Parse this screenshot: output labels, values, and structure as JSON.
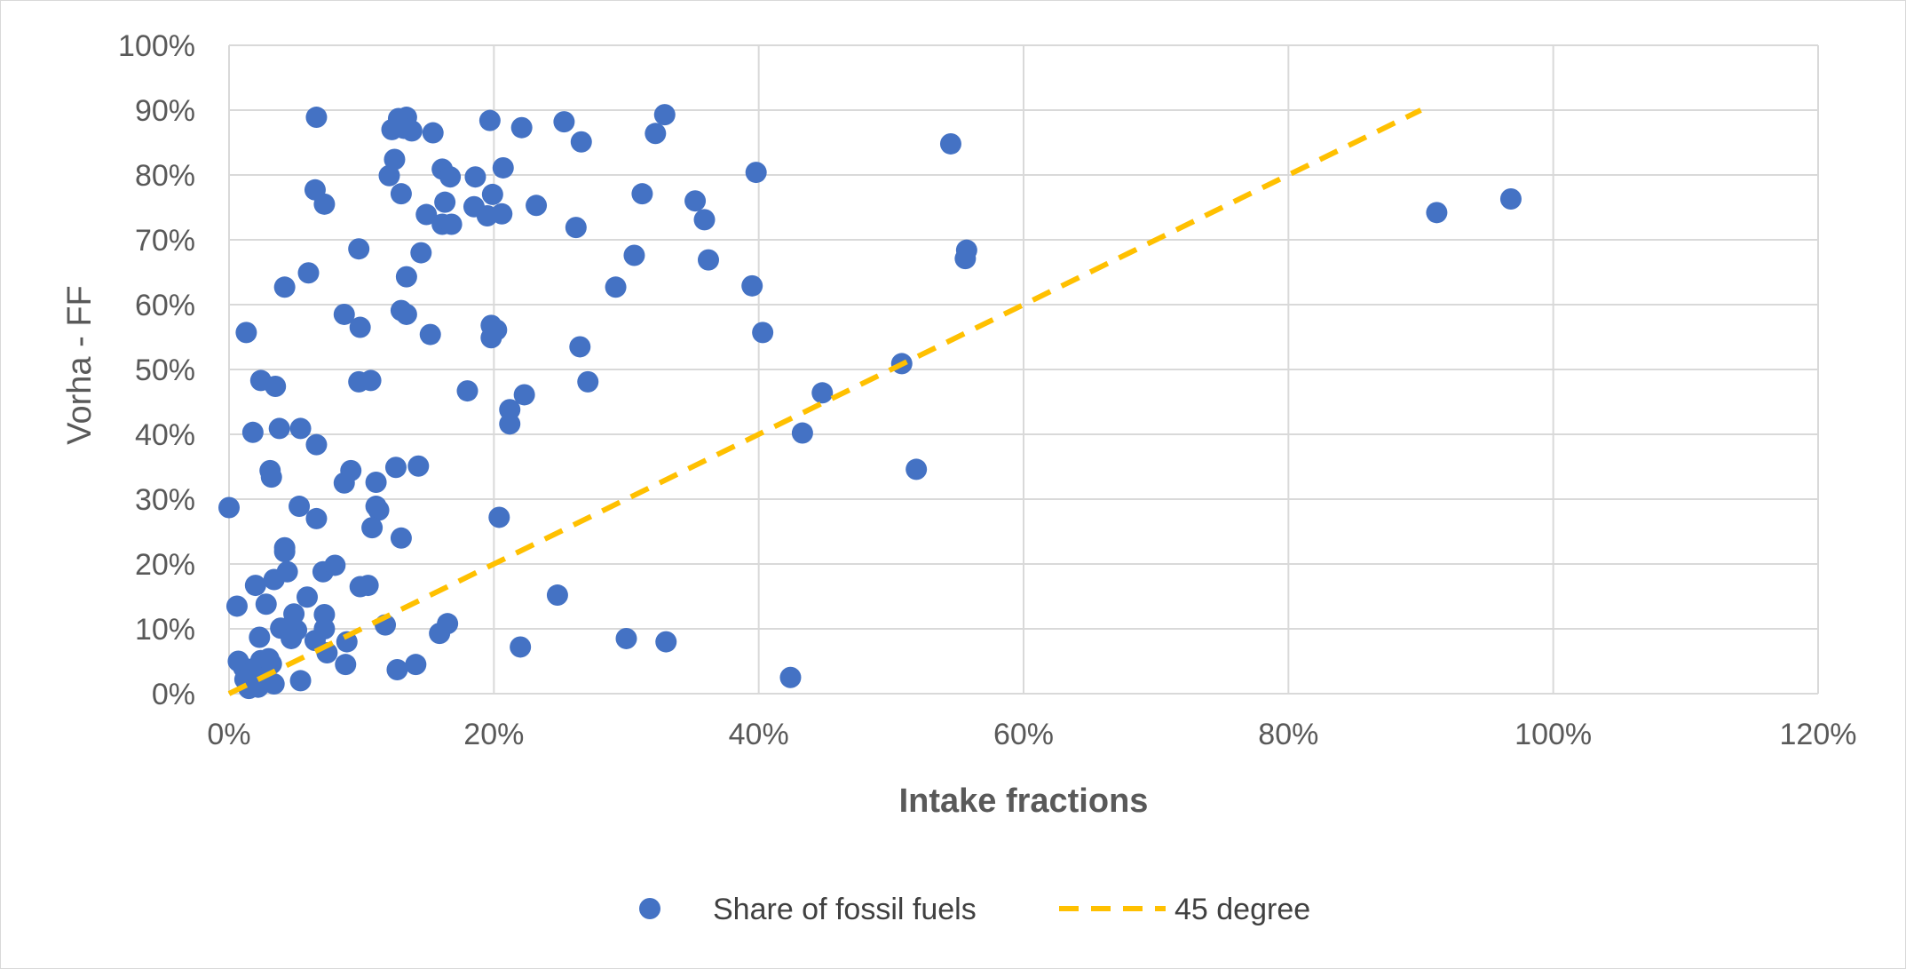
{
  "chart_data": {
    "type": "scatter",
    "title": "",
    "xlabel": "Intake fractions",
    "ylabel": "Vorha - FF",
    "xlim": [
      0,
      1.2
    ],
    "ylim": [
      0,
      1.0
    ],
    "x_ticks": [
      0,
      0.2,
      0.4,
      0.6,
      0.8,
      1.0,
      1.2
    ],
    "y_ticks": [
      0,
      0.1,
      0.2,
      0.3,
      0.4,
      0.5,
      0.6,
      0.7,
      0.8,
      0.9,
      1.0
    ],
    "x_tick_labels": [
      "0%",
      "20%",
      "40%",
      "60%",
      "80%",
      "100%",
      "120%"
    ],
    "y_tick_labels": [
      "0%",
      "10%",
      "20%",
      "30%",
      "40%",
      "50%",
      "60%",
      "70%",
      "80%",
      "90%",
      "100%"
    ],
    "grid": true,
    "legend_position": "bottom",
    "series": [
      {
        "name": "Share of fossil fuels",
        "kind": "scatter",
        "color": "#4472C4",
        "points": [
          [
            0.066,
            0.889
          ],
          [
            0.128,
            0.887
          ],
          [
            0.134,
            0.889
          ],
          [
            0.123,
            0.87
          ],
          [
            0.132,
            0.872
          ],
          [
            0.138,
            0.868
          ],
          [
            0.154,
            0.865
          ],
          [
            0.197,
            0.884
          ],
          [
            0.221,
            0.873
          ],
          [
            0.253,
            0.882
          ],
          [
            0.329,
            0.893
          ],
          [
            0.322,
            0.864
          ],
          [
            0.266,
            0.851
          ],
          [
            0.125,
            0.824
          ],
          [
            0.121,
            0.799
          ],
          [
            0.161,
            0.809
          ],
          [
            0.167,
            0.797
          ],
          [
            0.186,
            0.797
          ],
          [
            0.207,
            0.811
          ],
          [
            0.398,
            0.804
          ],
          [
            0.545,
            0.848
          ],
          [
            0.065,
            0.777
          ],
          [
            0.072,
            0.755
          ],
          [
            0.13,
            0.771
          ],
          [
            0.163,
            0.758
          ],
          [
            0.185,
            0.751
          ],
          [
            0.199,
            0.77
          ],
          [
            0.232,
            0.753
          ],
          [
            0.312,
            0.771
          ],
          [
            0.352,
            0.76
          ],
          [
            0.149,
            0.739
          ],
          [
            0.161,
            0.724
          ],
          [
            0.168,
            0.724
          ],
          [
            0.195,
            0.737
          ],
          [
            0.206,
            0.74
          ],
          [
            0.262,
            0.719
          ],
          [
            0.359,
            0.731
          ],
          [
            0.912,
            0.742
          ],
          [
            0.968,
            0.763
          ],
          [
            0.098,
            0.686
          ],
          [
            0.145,
            0.68
          ],
          [
            0.306,
            0.676
          ],
          [
            0.362,
            0.669
          ],
          [
            0.557,
            0.684
          ],
          [
            0.556,
            0.671
          ],
          [
            0.06,
            0.649
          ],
          [
            0.042,
            0.627
          ],
          [
            0.134,
            0.643
          ],
          [
            0.292,
            0.627
          ],
          [
            0.395,
            0.629
          ],
          [
            0.087,
            0.585
          ],
          [
            0.13,
            0.591
          ],
          [
            0.134,
            0.585
          ],
          [
            0.099,
            0.565
          ],
          [
            0.013,
            0.557
          ],
          [
            0.152,
            0.554
          ],
          [
            0.198,
            0.568
          ],
          [
            0.202,
            0.561
          ],
          [
            0.198,
            0.549
          ],
          [
            0.403,
            0.557
          ],
          [
            0.265,
            0.535
          ],
          [
            0.024,
            0.483
          ],
          [
            0.035,
            0.474
          ],
          [
            0.098,
            0.481
          ],
          [
            0.107,
            0.483
          ],
          [
            0.271,
            0.481
          ],
          [
            0.508,
            0.509
          ],
          [
            0.18,
            0.467
          ],
          [
            0.223,
            0.461
          ],
          [
            0.212,
            0.438
          ],
          [
            0.212,
            0.416
          ],
          [
            0.448,
            0.464
          ],
          [
            0.018,
            0.403
          ],
          [
            0.038,
            0.409
          ],
          [
            0.054,
            0.409
          ],
          [
            0.066,
            0.384
          ],
          [
            0.433,
            0.402
          ],
          [
            0.031,
            0.344
          ],
          [
            0.032,
            0.334
          ],
          [
            0.092,
            0.344
          ],
          [
            0.087,
            0.325
          ],
          [
            0.126,
            0.349
          ],
          [
            0.143,
            0.351
          ],
          [
            0.111,
            0.326
          ],
          [
            0.519,
            0.346
          ],
          [
            0.0,
            0.287
          ],
          [
            0.053,
            0.289
          ],
          [
            0.066,
            0.27
          ],
          [
            0.111,
            0.289
          ],
          [
            0.113,
            0.283
          ],
          [
            0.108,
            0.256
          ],
          [
            0.13,
            0.24
          ],
          [
            0.204,
            0.272
          ],
          [
            0.042,
            0.225
          ],
          [
            0.042,
            0.219
          ],
          [
            0.02,
            0.167
          ],
          [
            0.034,
            0.176
          ],
          [
            0.044,
            0.188
          ],
          [
            0.071,
            0.188
          ],
          [
            0.08,
            0.198
          ],
          [
            0.099,
            0.165
          ],
          [
            0.105,
            0.167
          ],
          [
            0.006,
            0.135
          ],
          [
            0.028,
            0.138
          ],
          [
            0.059,
            0.149
          ],
          [
            0.248,
            0.152
          ],
          [
            0.049,
            0.123
          ],
          [
            0.072,
            0.122
          ],
          [
            0.118,
            0.106
          ],
          [
            0.165,
            0.108
          ],
          [
            0.039,
            0.101
          ],
          [
            0.046,
            0.094
          ],
          [
            0.051,
            0.098
          ],
          [
            0.072,
            0.1
          ],
          [
            0.159,
            0.093
          ],
          [
            0.023,
            0.087
          ],
          [
            0.047,
            0.085
          ],
          [
            0.065,
            0.082
          ],
          [
            0.089,
            0.08
          ],
          [
            0.3,
            0.085
          ],
          [
            0.33,
            0.08
          ],
          [
            0.007,
            0.05
          ],
          [
            0.011,
            0.04
          ],
          [
            0.016,
            0.032
          ],
          [
            0.02,
            0.04
          ],
          [
            0.024,
            0.051
          ],
          [
            0.03,
            0.054
          ],
          [
            0.032,
            0.046
          ],
          [
            0.019,
            0.015
          ],
          [
            0.034,
            0.015
          ],
          [
            0.054,
            0.02
          ],
          [
            0.074,
            0.063
          ],
          [
            0.088,
            0.045
          ],
          [
            0.127,
            0.037
          ],
          [
            0.141,
            0.045
          ],
          [
            0.22,
            0.072
          ],
          [
            0.424,
            0.025
          ],
          [
            0.012,
            0.022
          ],
          [
            0.028,
            0.025
          ],
          [
            0.015,
            0.008
          ],
          [
            0.022,
            0.01
          ],
          [
            0.03,
            0.018
          ]
        ]
      },
      {
        "name": "45 degree",
        "kind": "line",
        "style": "dashed",
        "color": "#FFC000",
        "points": [
          [
            0,
            0
          ],
          [
            0.9,
            0.9
          ]
        ]
      }
    ]
  }
}
